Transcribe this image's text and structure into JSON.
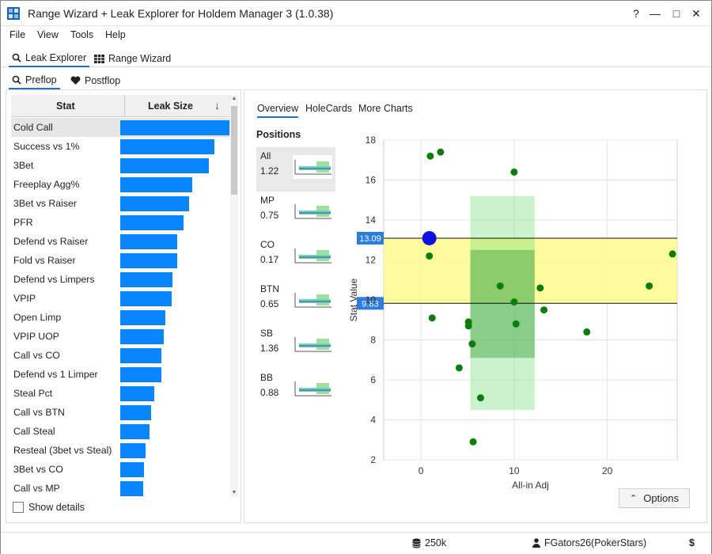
{
  "window": {
    "title": "Range Wizard + Leak Explorer for Holdem Manager 3 (1.0.38)",
    "help": "?",
    "minimize": "—",
    "maximize": "□",
    "close": "✕"
  },
  "menu": {
    "file": "File",
    "view": "View",
    "tools": "Tools",
    "help": "Help"
  },
  "main_tabs": {
    "leak_explorer": "Leak Explorer",
    "range_wizard": "Range Wizard"
  },
  "sub_tabs": {
    "preflop": "Preflop",
    "postflop": "Postflop"
  },
  "table": {
    "col_stat": "Stat",
    "col_leak": "Leak Size",
    "rows": [
      {
        "label": "Cold Call",
        "leak": 1.0
      },
      {
        "label": "Success vs 1%",
        "leak": 0.86
      },
      {
        "label": "3Bet",
        "leak": 0.81
      },
      {
        "label": "Freeplay Agg%",
        "leak": 0.66
      },
      {
        "label": "3Bet vs Raiser",
        "leak": 0.63
      },
      {
        "label": "PFR",
        "leak": 0.58
      },
      {
        "label": "Defend vs Raiser",
        "leak": 0.52
      },
      {
        "label": "Fold vs Raiser",
        "leak": 0.52
      },
      {
        "label": "Defend vs Limpers",
        "leak": 0.48
      },
      {
        "label": "VPIP",
        "leak": 0.47
      },
      {
        "label": "Open Limp",
        "leak": 0.41
      },
      {
        "label": "VPIP UOP",
        "leak": 0.4
      },
      {
        "label": "Call vs CO",
        "leak": 0.38
      },
      {
        "label": "Defend vs 1 Limper",
        "leak": 0.38
      },
      {
        "label": "Steal Pct",
        "leak": 0.31
      },
      {
        "label": "Call vs BTN",
        "leak": 0.28
      },
      {
        "label": "Call Steal",
        "leak": 0.27
      },
      {
        "label": "Resteal (3bet vs Steal)",
        "leak": 0.23
      },
      {
        "label": "3Bet vs CO",
        "leak": 0.22
      },
      {
        "label": "Call vs MP",
        "leak": 0.21
      }
    ],
    "show_details": "Show details"
  },
  "right": {
    "tabs": {
      "overview": "Overview",
      "holecards": "HoleCards",
      "more": "More Charts"
    },
    "positions_title": "Positions",
    "positions": [
      {
        "name": "All",
        "value": "1.22"
      },
      {
        "name": "MP",
        "value": "0.75"
      },
      {
        "name": "CO",
        "value": "0.17"
      },
      {
        "name": "BTN",
        "value": "0.65"
      },
      {
        "name": "SB",
        "value": "1.36"
      },
      {
        "name": "BB",
        "value": "0.88"
      }
    ],
    "options": "Options"
  },
  "chart_data": {
    "type": "scatter",
    "xlabel": "All-in Adj",
    "ylabel": "Stat Value",
    "xlim": [
      -4,
      27.5
    ],
    "ylim": [
      2,
      18
    ],
    "x_ticks": [
      0,
      10,
      20
    ],
    "y_ticks": [
      2,
      4,
      6,
      8,
      10,
      12,
      14,
      16,
      18
    ],
    "grid": true,
    "band": {
      "low": 9.83,
      "high": 13.09,
      "low_label": "9.83",
      "high_label": "13.09",
      "color": "#fbfb8c"
    },
    "green_zone": {
      "x": [
        5.3,
        12.2
      ],
      "y": [
        4.5,
        15.2
      ],
      "inner_y": [
        7.1,
        12.5
      ]
    },
    "highlight": {
      "x": 0.9,
      "y": 13.09,
      "color": "#1010e0"
    },
    "points": [
      {
        "x": 1.0,
        "y": 17.2
      },
      {
        "x": 2.1,
        "y": 17.4
      },
      {
        "x": 10.0,
        "y": 16.4
      },
      {
        "x": 0.9,
        "y": 12.2
      },
      {
        "x": 27.0,
        "y": 12.3
      },
      {
        "x": 8.5,
        "y": 10.7
      },
      {
        "x": 12.8,
        "y": 10.6
      },
      {
        "x": 24.5,
        "y": 10.7
      },
      {
        "x": 10.0,
        "y": 9.9
      },
      {
        "x": 13.2,
        "y": 9.5
      },
      {
        "x": 1.2,
        "y": 9.1
      },
      {
        "x": 5.1,
        "y": 8.9
      },
      {
        "x": 5.1,
        "y": 8.7
      },
      {
        "x": 10.2,
        "y": 8.8
      },
      {
        "x": 17.8,
        "y": 8.4
      },
      {
        "x": 5.5,
        "y": 7.8
      },
      {
        "x": 4.1,
        "y": 6.6
      },
      {
        "x": 6.4,
        "y": 5.1
      },
      {
        "x": 5.6,
        "y": 2.9
      }
    ],
    "point_color": "#0a7d0a"
  },
  "status": {
    "hands": "250k",
    "player": "FGators26(PokerStars)",
    "dollar": "$"
  }
}
